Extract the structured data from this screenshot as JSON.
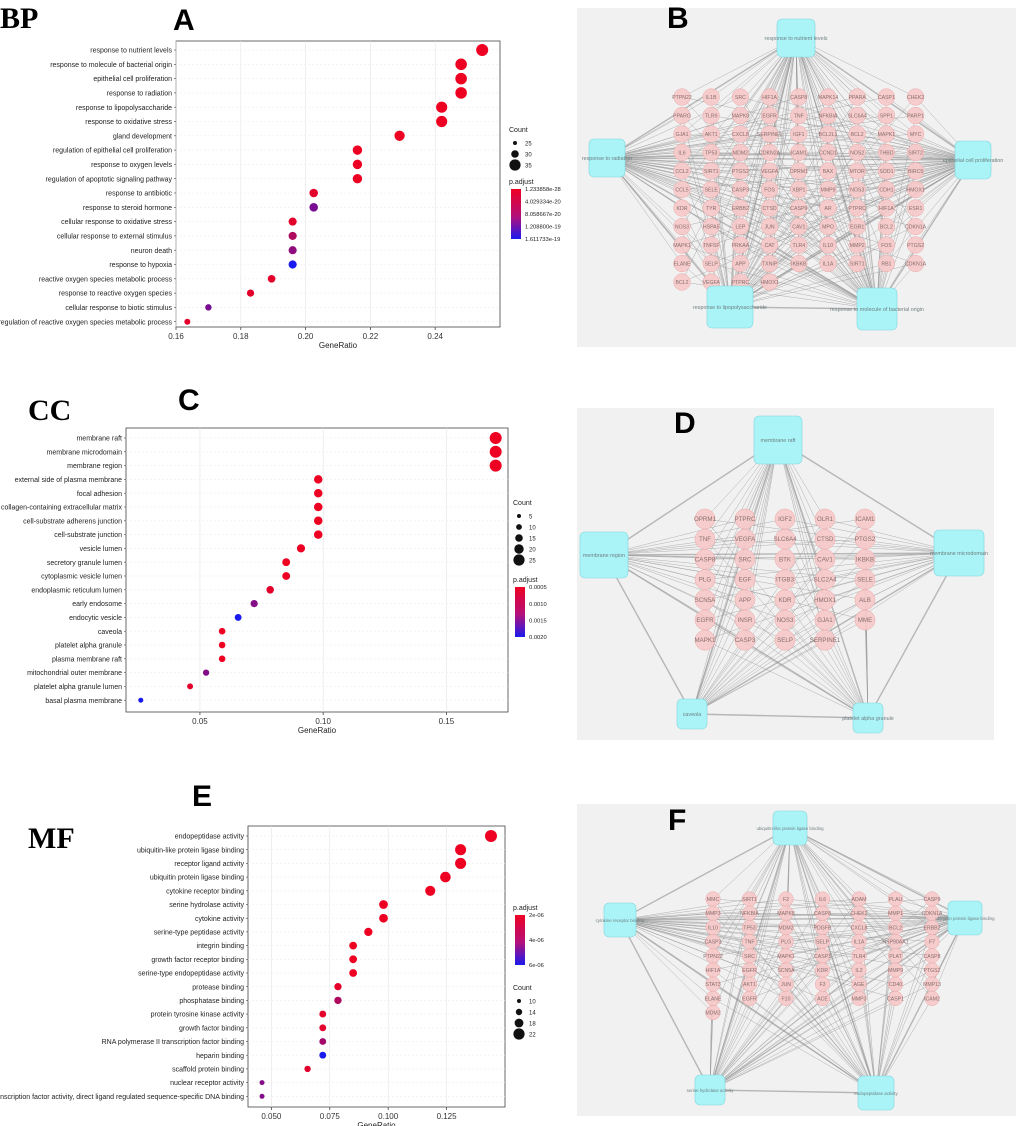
{
  "panel_titles": {
    "bp": "BP",
    "cc": "CC",
    "mf": "MF",
    "a": "A",
    "b": "B",
    "c": "C",
    "d": "D",
    "e": "E",
    "f": "F"
  },
  "colors": {
    "high": "#ee0022",
    "low": "#1a1aee",
    "node": "#f6c9c9",
    "node_stroke": "#e9a8a8",
    "term": "#aaf4f8",
    "term_stroke": "#7fd6dc"
  },
  "chart_data": [
    {
      "id": "A",
      "type": "scatter",
      "xlabel": "GeneRatio",
      "xlim": [
        0.16,
        0.26
      ],
      "xticks": [
        0.16,
        0.18,
        0.2,
        0.22,
        0.24
      ],
      "xticklabels": [
        "0.16",
        "0.18",
        "0.20",
        "0.22",
        "0.24"
      ],
      "size_legend": {
        "title": "Count",
        "values": [
          25,
          30,
          35
        ],
        "labels": [
          "25",
          "30",
          "35"
        ]
      },
      "color_legend": {
        "title": "p.adjust",
        "labels": [
          "1.233858e-28",
          "4.029334e-20",
          "8.058667e-20",
          "1.208800e-19",
          "1.611733e-19"
        ]
      },
      "terms": [
        {
          "name": "response to nutrient levels",
          "x": 0.2545,
          "count": 37,
          "c": 0
        },
        {
          "name": "response to molecule of bacterial origin",
          "x": 0.248,
          "count": 36,
          "c": 0
        },
        {
          "name": "epithelial cell proliferation",
          "x": 0.248,
          "count": 36,
          "c": 0
        },
        {
          "name": "response to radiation",
          "x": 0.248,
          "count": 36,
          "c": 0
        },
        {
          "name": "response to lipopolysaccharide",
          "x": 0.242,
          "count": 35,
          "c": 0
        },
        {
          "name": "response to oxidative stress",
          "x": 0.242,
          "count": 35,
          "c": 0
        },
        {
          "name": "gland development",
          "x": 0.229,
          "count": 33,
          "c": 0
        },
        {
          "name": "regulation of epithelial cell proliferation",
          "x": 0.216,
          "count": 31,
          "c": 0
        },
        {
          "name": "response to oxygen levels",
          "x": 0.216,
          "count": 31,
          "c": 0
        },
        {
          "name": "regulation of apoptotic signaling pathway",
          "x": 0.216,
          "count": 31,
          "c": 0
        },
        {
          "name": "response to antibiotic",
          "x": 0.2025,
          "count": 29,
          "c": 0.05
        },
        {
          "name": "response to steroid hormone",
          "x": 0.2025,
          "count": 29,
          "c": 0.55
        },
        {
          "name": "cellular response to oxidative stress",
          "x": 0.196,
          "count": 28,
          "c": 0.05
        },
        {
          "name": "cellular response to external stimulus",
          "x": 0.196,
          "count": 28,
          "c": 0.3
        },
        {
          "name": "neuron death",
          "x": 0.196,
          "count": 28,
          "c": 0.45
        },
        {
          "name": "response to hypoxia",
          "x": 0.196,
          "count": 28,
          "c": 1.0
        },
        {
          "name": "reactive oxygen species metabolic process",
          "x": 0.1895,
          "count": 27,
          "c": 0.05
        },
        {
          "name": "response to reactive oxygen species",
          "x": 0.183,
          "count": 26,
          "c": 0.05
        },
        {
          "name": "cellular response to biotic stimulus",
          "x": 0.17,
          "count": 24,
          "c": 0.55
        },
        {
          "name": "regulation of reactive oxygen species metabolic process",
          "x": 0.1635,
          "count": 23,
          "c": 0.05
        }
      ]
    },
    {
      "id": "C",
      "type": "scatter",
      "xlabel": "GeneRatio",
      "xlim": [
        0.02,
        0.175
      ],
      "xticks": [
        0.05,
        0.1,
        0.15
      ],
      "xticklabels": [
        "0.05",
        "0.10",
        "0.15"
      ],
      "size_legend": {
        "title": "Count",
        "values": [
          5,
          10,
          15,
          20,
          25
        ],
        "labels": [
          "5",
          "10",
          "15",
          "20",
          "25"
        ]
      },
      "color_legend": {
        "title": "p.adjust",
        "labels": [
          "0.0005",
          "0.0010",
          "0.0015",
          "0.0020"
        ]
      },
      "terms": [
        {
          "name": "membrane raft",
          "x": 0.17,
          "count": 26,
          "c": 0
        },
        {
          "name": "membrane microdomain",
          "x": 0.17,
          "count": 26,
          "c": 0
        },
        {
          "name": "membrane region",
          "x": 0.17,
          "count": 26,
          "c": 0
        },
        {
          "name": "external side of plasma membrane",
          "x": 0.098,
          "count": 15,
          "c": 0
        },
        {
          "name": "focal adhesion",
          "x": 0.098,
          "count": 15,
          "c": 0
        },
        {
          "name": "collagen-containing extracellular matrix",
          "x": 0.098,
          "count": 15,
          "c": 0
        },
        {
          "name": "cell-substrate adherens junction",
          "x": 0.098,
          "count": 15,
          "c": 0
        },
        {
          "name": "cell-substrate junction",
          "x": 0.098,
          "count": 15,
          "c": 0
        },
        {
          "name": "vesicle lumen",
          "x": 0.091,
          "count": 14,
          "c": 0
        },
        {
          "name": "secretory granule lumen",
          "x": 0.085,
          "count": 13,
          "c": 0
        },
        {
          "name": "cytoplasmic vesicle lumen",
          "x": 0.085,
          "count": 13,
          "c": 0
        },
        {
          "name": "endoplasmic reticulum lumen",
          "x": 0.0785,
          "count": 12,
          "c": 0.05
        },
        {
          "name": "early endosome",
          "x": 0.072,
          "count": 11,
          "c": 0.5
        },
        {
          "name": "endocytic vesicle",
          "x": 0.0655,
          "count": 10,
          "c": 1.0
        },
        {
          "name": "caveola",
          "x": 0.059,
          "count": 9,
          "c": 0
        },
        {
          "name": "platelet alpha granule",
          "x": 0.059,
          "count": 9,
          "c": 0
        },
        {
          "name": "plasma membrane raft",
          "x": 0.059,
          "count": 9,
          "c": 0
        },
        {
          "name": "mitochondrial outer membrane",
          "x": 0.0525,
          "count": 8,
          "c": 0.5
        },
        {
          "name": "platelet alpha granule lumen",
          "x": 0.046,
          "count": 7,
          "c": 0.05
        },
        {
          "name": "basal plasma membrane",
          "x": 0.026,
          "count": 4,
          "c": 1.0
        }
      ]
    },
    {
      "id": "E",
      "type": "scatter",
      "xlabel": "GeneRatio",
      "xlim": [
        0.04,
        0.15
      ],
      "xticks": [
        0.05,
        0.075,
        0.1,
        0.125
      ],
      "xticklabels": [
        "0.050",
        "0.075",
        "0.100",
        "0.125"
      ],
      "size_legend": {
        "title": "Count",
        "values": [
          10,
          14,
          18,
          22
        ],
        "labels": [
          "10",
          "14",
          "18",
          "22"
        ]
      },
      "color_legend": {
        "title": "p.adjust",
        "labels": [
          "2e-06",
          "4e-06",
          "6e-06"
        ]
      },
      "terms": [
        {
          "name": "endopeptidase activity",
          "x": 0.144,
          "count": 23,
          "c": 0
        },
        {
          "name": "ubiquitin-like protein ligase binding",
          "x": 0.131,
          "count": 21,
          "c": 0
        },
        {
          "name": "receptor ligand activity",
          "x": 0.131,
          "count": 21,
          "c": 0
        },
        {
          "name": "ubiquitin protein ligase binding",
          "x": 0.1245,
          "count": 20,
          "c": 0
        },
        {
          "name": "cytokine receptor binding",
          "x": 0.118,
          "count": 19,
          "c": 0
        },
        {
          "name": "serine hydrolase activity",
          "x": 0.098,
          "count": 16,
          "c": 0
        },
        {
          "name": "cytokine activity",
          "x": 0.098,
          "count": 16,
          "c": 0
        },
        {
          "name": "serine-type peptidase activity",
          "x": 0.0915,
          "count": 15,
          "c": 0
        },
        {
          "name": "integrin binding",
          "x": 0.085,
          "count": 14,
          "c": 0
        },
        {
          "name": "growth factor receptor binding",
          "x": 0.085,
          "count": 14,
          "c": 0
        },
        {
          "name": "serine-type endopeptidase activity",
          "x": 0.085,
          "count": 14,
          "c": 0
        },
        {
          "name": "protease binding",
          "x": 0.0785,
          "count": 13,
          "c": 0.05
        },
        {
          "name": "phosphatase binding",
          "x": 0.0785,
          "count": 13,
          "c": 0.3
        },
        {
          "name": "protein tyrosine kinase activity",
          "x": 0.072,
          "count": 12,
          "c": 0.05
        },
        {
          "name": "growth factor binding",
          "x": 0.072,
          "count": 12,
          "c": 0.05
        },
        {
          "name": "RNA polymerase II transcription factor binding",
          "x": 0.072,
          "count": 12,
          "c": 0.35
        },
        {
          "name": "heparin binding",
          "x": 0.072,
          "count": 12,
          "c": 1.0
        },
        {
          "name": "scaffold protein binding",
          "x": 0.0655,
          "count": 11,
          "c": 0.05
        },
        {
          "name": "nuclear receptor activity",
          "x": 0.046,
          "count": 8,
          "c": 0.5
        },
        {
          "name": "transcription factor activity, direct ligand regulated sequence-specific DNA binding",
          "x": 0.046,
          "count": 8,
          "c": 0.5
        }
      ]
    }
  ],
  "networks": [
    {
      "id": "B",
      "terms": [
        "response to nutrient levels",
        "response to radiation",
        "epithelial cell proliferation",
        "response to lipopolysaccharide",
        "response to molecule of bacterial origin"
      ],
      "genes": [
        [
          "PTPN22",
          "IL1B",
          "SRC",
          "HIF1A",
          "CASP8",
          "MAPK14",
          "PPARA",
          "CASP1",
          "CHEK2"
        ],
        [
          "PPARG",
          "TLR9",
          "MAPK8",
          "EGFR",
          "TNF",
          "NFKBIA",
          "SLC6A4",
          "SPP1",
          "PARP1"
        ],
        [
          "GJA1",
          "AKT1",
          "CXCL8",
          "SERPINE1",
          "IGF1",
          "BCL2L1",
          "BCL2",
          "MAPK1",
          "MYC"
        ],
        [
          "IL6",
          "TP53",
          "MDM2",
          "CDKN2A",
          "ICAM1",
          "CCND1",
          "NOS2",
          "THBD",
          "SIRT2"
        ],
        [
          "CCL2",
          "SIRT1",
          "PTGS2",
          "VEGFA",
          "OPRM1",
          "BAX",
          "MTOR",
          "SOD1",
          "BIRC5"
        ],
        [
          "CCL5",
          "SELE",
          "CASP3",
          "FOS",
          "XBP1",
          "MMP9",
          "NOS3",
          "CDH1",
          "HMOX1"
        ],
        [
          "KDR",
          "TYR",
          "ERBB2",
          "CTSD",
          "CASP9",
          "AR",
          "PTPRC",
          "HIF1A",
          "ESR1"
        ],
        [
          "NOS3",
          "HSPA5",
          "LEP",
          "JUN",
          "CAV1",
          "MPO",
          "EGR1",
          "BCL2",
          "CDKN1A"
        ],
        [
          "MAPK1",
          "TNFSF",
          "PRKAA",
          "CAT",
          "TLR4",
          "IL10",
          "MMP2",
          "FOS",
          "PTGS2"
        ],
        [
          "ELANE",
          "SELP",
          "APP",
          "TXNIP",
          "IKBKB",
          "IL1A",
          "SIRT1",
          "RB1",
          "CDKN1A"
        ],
        [
          "BCL2",
          "VEGFA",
          "PTPRC",
          "HMOX1"
        ]
      ]
    },
    {
      "id": "D",
      "terms": [
        "membrane raft",
        "membrane region",
        "membrane microdomain",
        "caveola",
        "platelet alpha granule"
      ],
      "genes": [
        [
          "OPRM1",
          "PTPRC",
          "IGF2",
          "OLR1",
          "ICAM1"
        ],
        [
          "TNF",
          "VEGFA",
          "SLC6A4",
          "CTSD",
          "PTGS2"
        ],
        [
          "CASP8",
          "SRC",
          "BTK",
          "CAV1",
          "IKBKB"
        ],
        [
          "PLG",
          "EGF",
          "ITGB3",
          "SLC2A4",
          "SELE"
        ],
        [
          "SCN5A",
          "APP",
          "KDR",
          "HMOX1",
          "ALB"
        ],
        [
          "EGFR",
          "INSR",
          "NOS3",
          "GJA1",
          "MME"
        ],
        [
          "MAPK1",
          "CASP3",
          "SELP",
          "SERPINE1"
        ]
      ]
    },
    {
      "id": "F",
      "terms": [
        "ubiquitin-like protein ligase binding",
        "cytokine receptor binding",
        "ubiquitin protein ligase binding",
        "serine hydrolase activity",
        "endopeptidase activity"
      ],
      "genes": [
        [
          "MMC",
          "SIRT1",
          "F2",
          "IL6",
          "ADAM",
          "PLAU",
          "CASP9"
        ],
        [
          "MMP3",
          "NFKBIA",
          "MAPK8",
          "CASP8",
          "CHEK2",
          "MMP1",
          "CDKN1A"
        ],
        [
          "IL10",
          "TP53",
          "MDM2",
          "PDGFB",
          "CXCL8",
          "BCL2",
          "ERBB2"
        ],
        [
          "CASP3",
          "TNF",
          "PLG",
          "SELP",
          "IL1A",
          "HSP90AA1",
          "F7"
        ],
        [
          "PTPN22",
          "SRC",
          "MAPK1",
          "CASP3",
          "TLR4",
          "PLAT",
          "CASP8"
        ],
        [
          "HIF1A",
          "EGFR",
          "SCN5A",
          "KDR",
          "IL2",
          "MMP9",
          "PTGS2"
        ],
        [
          "STAT3",
          "AKT1",
          "JUN",
          "F3",
          "AGE",
          "CD40",
          "MMP13"
        ],
        [
          "ELANE",
          "EGFR",
          "F10",
          "ACE",
          "MMP3",
          "CASP1",
          "ICAM2"
        ],
        [
          "MDM2"
        ]
      ]
    }
  ]
}
